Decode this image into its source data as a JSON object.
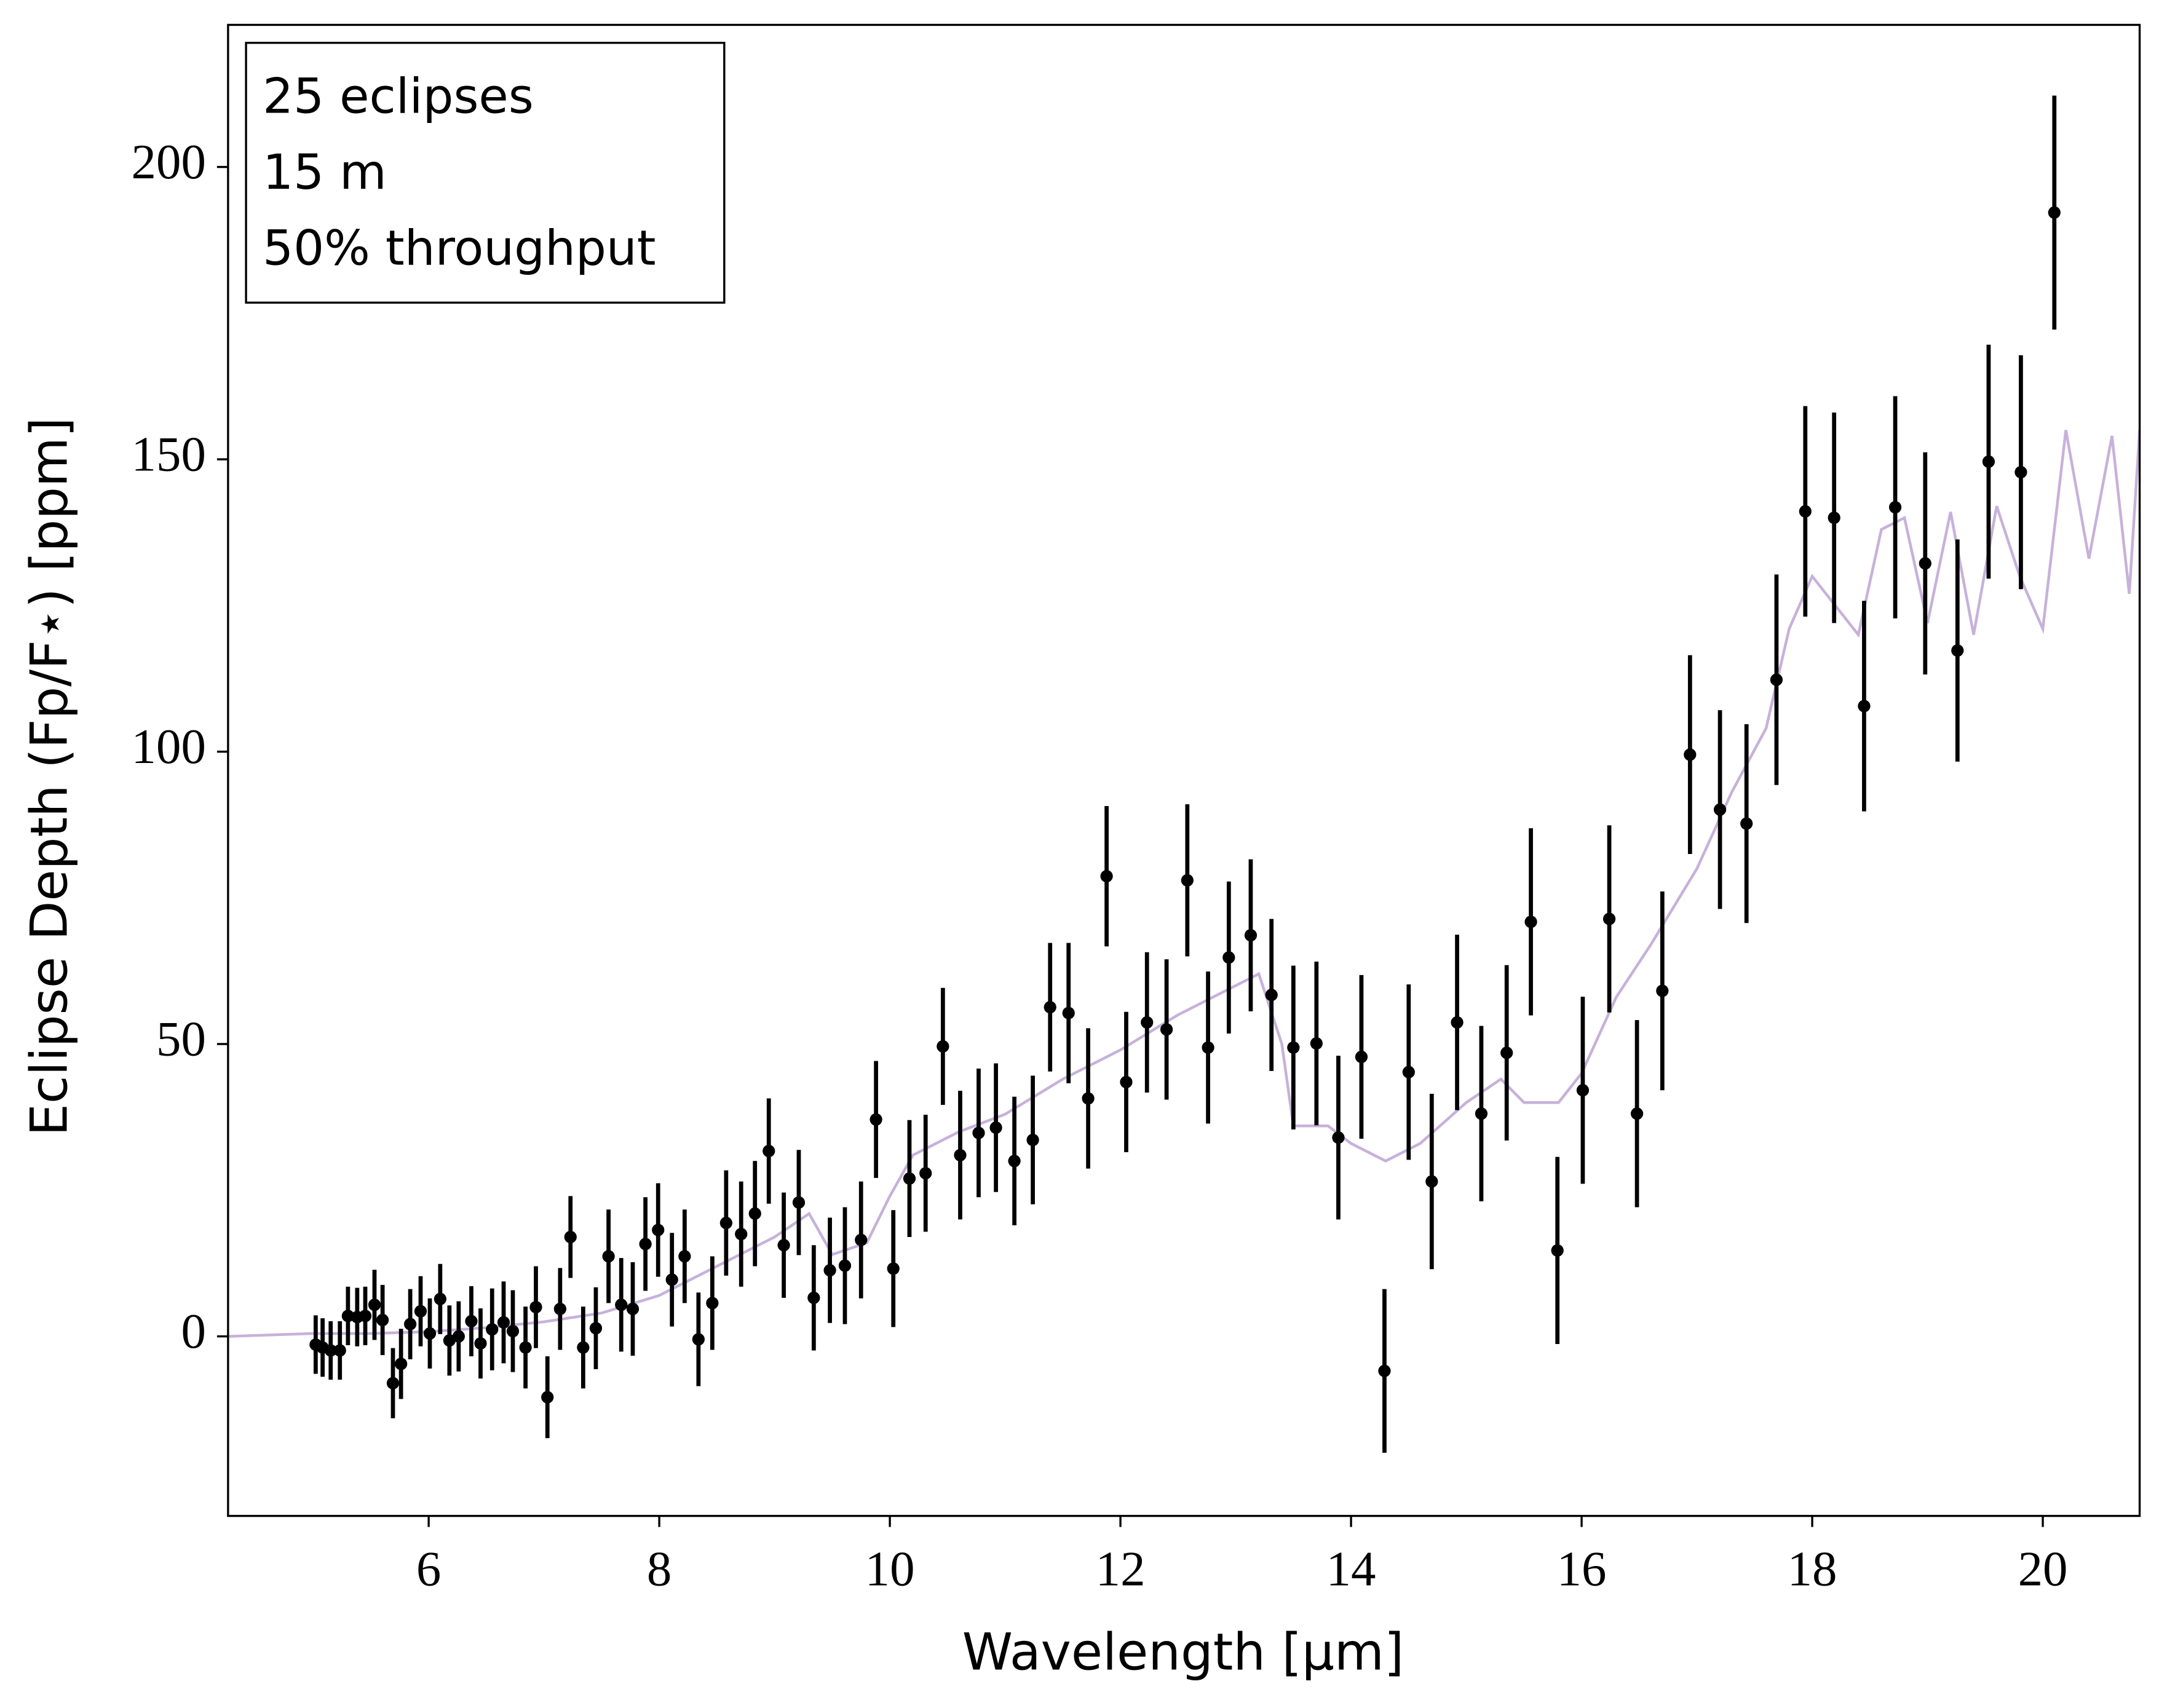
{
  "chart_data": {
    "type": "errorbar",
    "xlabel": "Wavelength [μm]",
    "ylabel": "Eclipse Depth (Fp/F⋆) [ppm]",
    "annotation": [
      "25 eclipses",
      "15 m",
      "50% throughput"
    ],
    "legend": "upper left",
    "xlim": [
      4.26,
      20.84
    ],
    "ylim": [
      -30.7,
      224.3
    ],
    "xticks": [
      6,
      8,
      10,
      12,
      14,
      16,
      18,
      20
    ],
    "yticks": [
      0,
      50,
      100,
      150,
      200
    ],
    "series": [
      {
        "type": "line",
        "color": "#c7b1da",
        "x": [
          4.26,
          5,
          5.5,
          6,
          6.5,
          7,
          7.5,
          8,
          8.5,
          9,
          9.3,
          9.5,
          9.8,
          10,
          10.2,
          10.6,
          11,
          11.5,
          12,
          12.5,
          13,
          13.2,
          13.4,
          13.5,
          13.8,
          14,
          14.3,
          14.6,
          15,
          15.3,
          15.5,
          15.8,
          16,
          16.3,
          16.6,
          17,
          17.3,
          17.6,
          17.8,
          18,
          18.2,
          18.4,
          18.6,
          18.8,
          19,
          19.2,
          19.4,
          19.6,
          19.8,
          20,
          20.2,
          20.4,
          20.6,
          20.75,
          20.84
        ],
        "values": [
          0,
          0.5,
          0.5,
          0.8,
          1.5,
          2.5,
          4,
          7,
          12,
          17,
          21,
          14,
          16,
          24,
          31,
          35,
          38,
          44,
          49,
          55,
          60,
          62,
          50,
          36,
          36,
          33,
          30,
          33,
          40,
          44,
          40,
          40,
          45,
          58,
          67,
          80,
          93,
          104,
          121,
          130,
          125,
          120,
          138,
          140,
          122,
          141,
          120,
          142,
          130,
          121,
          155,
          133,
          154,
          127,
          155
        ]
      },
      {
        "type": "errorbar",
        "color": "#000000",
        "x": [
          5.02,
          5.08,
          5.15,
          5.23,
          5.3,
          5.38,
          5.45,
          5.53,
          5.6,
          5.69,
          5.76,
          5.84,
          5.93,
          6.01,
          6.1,
          6.18,
          6.26,
          6.37,
          6.45,
          6.55,
          6.65,
          6.73,
          6.84,
          6.93,
          7.03,
          7.14,
          7.23,
          7.34,
          7.45,
          7.56,
          7.67,
          7.77,
          7.88,
          7.99,
          8.11,
          8.22,
          8.34,
          8.46,
          8.58,
          8.71,
          8.83,
          8.95,
          9.08,
          9.21,
          9.34,
          9.48,
          9.61,
          9.75,
          9.88,
          10.03,
          10.17,
          10.31,
          10.46,
          10.61,
          10.77,
          10.92,
          11.08,
          11.24,
          11.39,
          11.55,
          11.72,
          11.88,
          12.05,
          12.23,
          12.4,
          12.58,
          12.76,
          12.94,
          13.13,
          13.31,
          13.5,
          13.7,
          13.89,
          14.09,
          14.29,
          14.5,
          14.7,
          14.92,
          15.13,
          15.35,
          15.56,
          15.79,
          16.01,
          16.24,
          16.48,
          16.7,
          16.94,
          17.2,
          17.43,
          17.69,
          17.94,
          18.19,
          18.45,
          18.72,
          18.98,
          19.26,
          19.53,
          19.81,
          20.1
        ],
        "values": [
          -1.4,
          -1.9,
          -2.4,
          -2.4,
          3.5,
          3.3,
          3.5,
          5.4,
          2.8,
          -8,
          -4.7,
          2.1,
          4.3,
          0.5,
          6.4,
          -0.7,
          0,
          2.6,
          -1.2,
          1.2,
          2.4,
          0.9,
          -1.9,
          5,
          -10.4,
          4.7,
          17,
          -1.9,
          1.4,
          13.7,
          5.4,
          4.7,
          15.8,
          18.2,
          9.7,
          13.7,
          -0.5,
          5.7,
          19.4,
          17.5,
          21,
          31.7,
          15.6,
          22.9,
          6.6,
          11.3,
          12.1,
          16.5,
          37.1,
          11.6,
          27,
          27.9,
          49.6,
          31,
          34.8,
          35.7,
          30,
          33.6,
          56.3,
          55.3,
          40.7,
          78.7,
          43.5,
          53.7,
          52.5,
          78,
          49.4,
          64.8,
          68.6,
          58.4,
          49.4,
          50.1,
          34,
          47.8,
          -5.9,
          45.2,
          26.5,
          53.7,
          38.1,
          48.5,
          70.9,
          14.7,
          42.1,
          71.4,
          38.1,
          59.1,
          99.5,
          90.1,
          87.7,
          112.3,
          141.1,
          140,
          107.8,
          141.8,
          132.2,
          117.3,
          149.6,
          147.8,
          192.2
        ],
        "errors": [
          5,
          5,
          5,
          5,
          5,
          5,
          5,
          6,
          6,
          6,
          6,
          6,
          6,
          6,
          6,
          6,
          6,
          6,
          6,
          7,
          7,
          7,
          7,
          7,
          7,
          7,
          7,
          7,
          7,
          8,
          8,
          8,
          8,
          8,
          8,
          8,
          8,
          8,
          9,
          9,
          9,
          9,
          9,
          9,
          9,
          9,
          10,
          10,
          10,
          10,
          10,
          10,
          10,
          11,
          11,
          11,
          11,
          11,
          11,
          12,
          12,
          12,
          12,
          12,
          12,
          13,
          13,
          13,
          13,
          13,
          14,
          14,
          14,
          14,
          14,
          15,
          15,
          15,
          15,
          15,
          16,
          16,
          16,
          16,
          16,
          17,
          17,
          17,
          17,
          18,
          18,
          18,
          18,
          19,
          19,
          19,
          20,
          20,
          20
        ]
      }
    ]
  }
}
